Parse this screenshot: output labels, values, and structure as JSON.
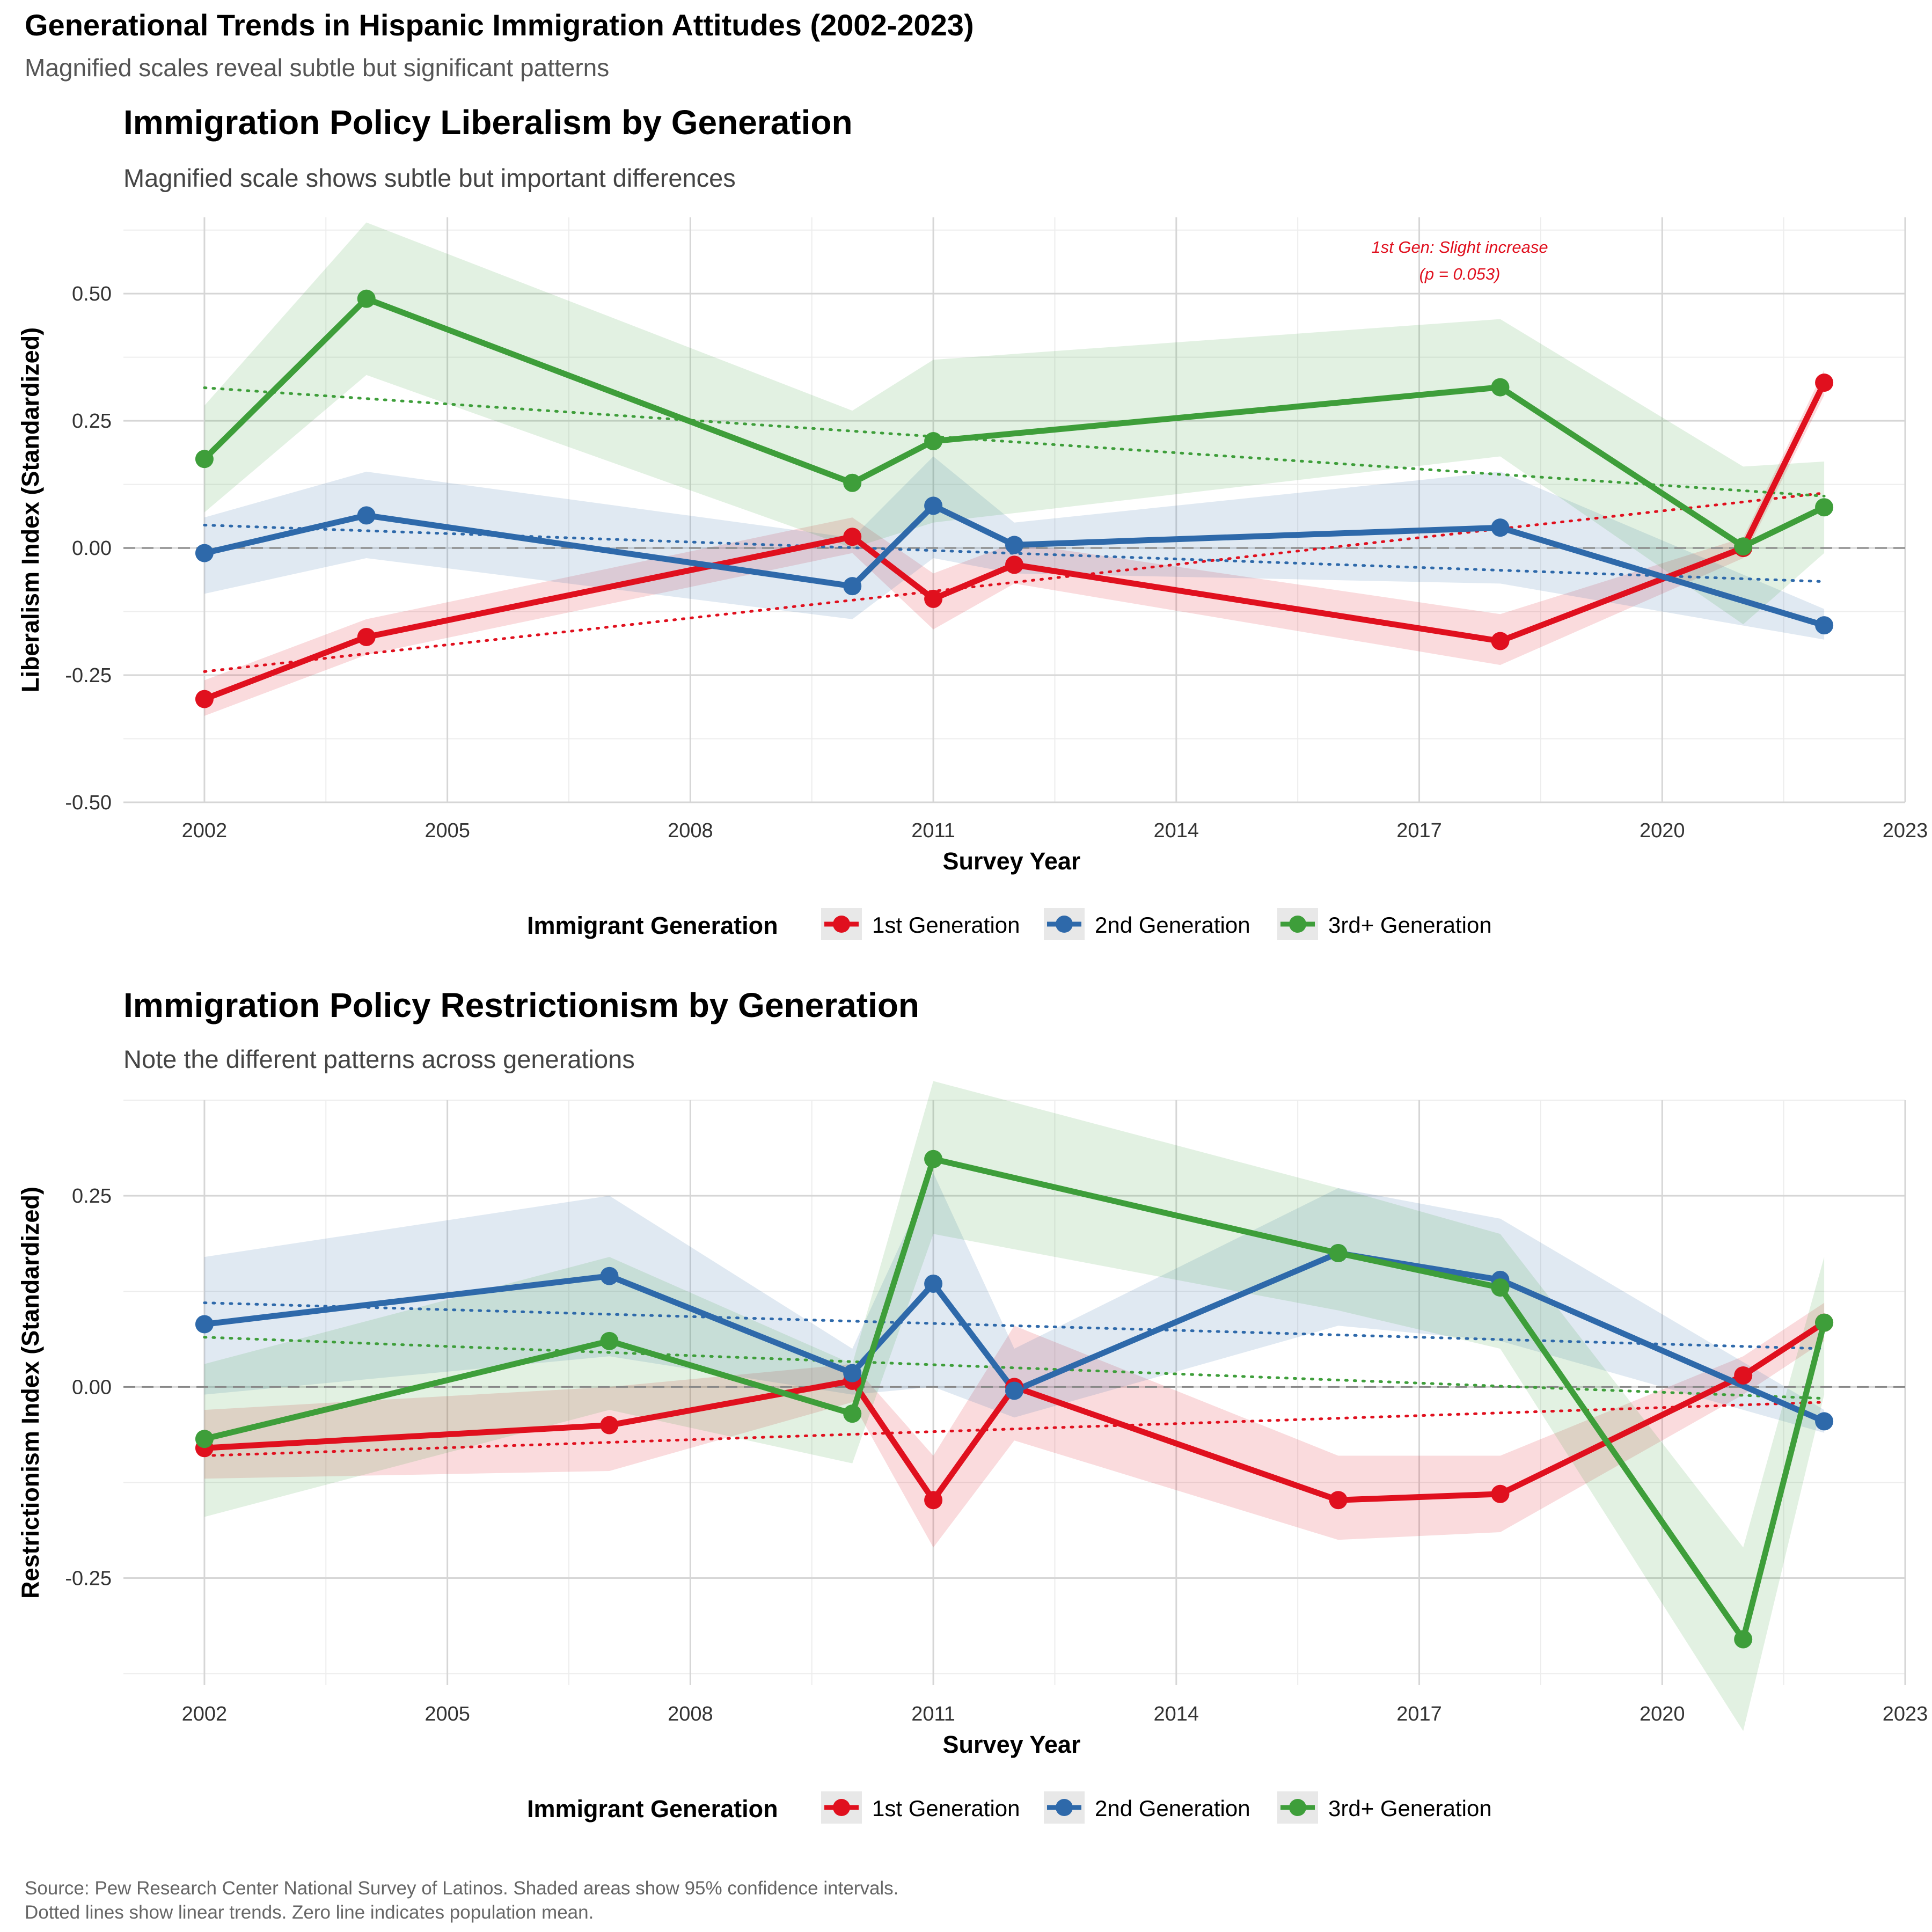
{
  "header": {
    "title": "Generational Trends in Hispanic Immigration Attitudes (2002-2023)",
    "subtitle": "Magnified scales reveal subtle but significant patterns"
  },
  "footer": {
    "caption_line1": "Source: Pew Research Center National Survey of Latinos. Shaded areas show 95% confidence intervals.",
    "caption_line2": "Dotted lines show linear trends. Zero line indicates population mean."
  },
  "colors": {
    "first": "#E0101E",
    "second": "#2E69AA",
    "third": "#3E9E3A"
  },
  "chart_data": [
    {
      "type": "line",
      "title": "Immigration Policy Liberalism by Generation",
      "subtitle": "Magnified scale shows subtle but important differences",
      "xlabel": "Survey Year",
      "ylabel": "Liberalism Index (Standardized)",
      "xlim": [
        2001,
        2023
      ],
      "ylim": [
        -0.5,
        0.65
      ],
      "x_ticks": [
        2002,
        2005,
        2008,
        2011,
        2014,
        2017,
        2020,
        2023
      ],
      "y_ticks": [
        -0.5,
        -0.25,
        0.0,
        0.25,
        0.5
      ],
      "y_tick_labels": [
        "-0.50",
        "-0.25",
        "0.00",
        "0.25",
        "0.50"
      ],
      "grid": true,
      "zero_line": true,
      "legend_title": "Immigrant Generation",
      "legend_position": "bottom",
      "series": [
        {
          "name": "1st Generation",
          "color_key": "first",
          "x": [
            2002,
            2004,
            2010,
            2011,
            2012,
            2018,
            2021,
            2022
          ],
          "y": [
            -0.297,
            -0.175,
            0.022,
            -0.1,
            -0.033,
            -0.183,
            0.0,
            0.325
          ],
          "ci_lower": [
            -0.33,
            -0.21,
            -0.01,
            -0.16,
            -0.07,
            -0.23,
            -0.02,
            0.3
          ],
          "ci_upper": [
            -0.26,
            -0.14,
            0.06,
            -0.05,
            0.01,
            -0.13,
            0.02,
            0.35
          ],
          "trend": [
            -0.243,
            0.108
          ]
        },
        {
          "name": "2nd Generation",
          "color_key": "second",
          "x": [
            2002,
            2004,
            2010,
            2011,
            2012,
            2018,
            2022
          ],
          "y": [
            -0.01,
            0.064,
            -0.075,
            0.083,
            0.006,
            0.04,
            -0.152
          ],
          "ci_lower": [
            -0.09,
            -0.02,
            -0.14,
            -0.02,
            -0.05,
            -0.07,
            -0.18
          ],
          "ci_upper": [
            0.06,
            0.15,
            0.02,
            0.18,
            0.05,
            0.15,
            -0.12
          ],
          "trend": [
            0.045,
            -0.066
          ]
        },
        {
          "name": "3rd+ Generation",
          "color_key": "third",
          "x": [
            2002,
            2004,
            2010,
            2011,
            2018,
            2021,
            2022
          ],
          "y": [
            0.175,
            0.49,
            0.128,
            0.21,
            0.316,
            0.003,
            0.08
          ],
          "ci_lower": [
            0.07,
            0.34,
            0.0,
            0.05,
            0.18,
            -0.15,
            -0.01
          ],
          "ci_upper": [
            0.28,
            0.64,
            0.27,
            0.37,
            0.45,
            0.16,
            0.17
          ],
          "trend": [
            0.315,
            0.102
          ]
        }
      ],
      "annotation": {
        "line1": "1st Gen: Slight increase",
        "line2": "(p = 0.053)",
        "x": 2017.5,
        "y": 0.57
      }
    },
    {
      "type": "line",
      "title": "Immigration Policy Restrictionism by Generation",
      "subtitle": "Note the different patterns across generations",
      "xlabel": "Survey Year",
      "ylabel": "Restrictionism Index (Standardized)",
      "xlim": [
        2001,
        2023
      ],
      "ylim": [
        -0.39,
        0.375
      ],
      "x_ticks": [
        2002,
        2005,
        2008,
        2011,
        2014,
        2017,
        2020,
        2023
      ],
      "y_ticks": [
        -0.25,
        0.0,
        0.25
      ],
      "y_tick_labels": [
        "-0.25",
        "0.00",
        "0.25"
      ],
      "grid": true,
      "zero_line": true,
      "legend_title": "Immigrant Generation",
      "legend_position": "bottom",
      "series": [
        {
          "name": "1st Generation",
          "color_key": "first",
          "x": [
            2002,
            2007,
            2010,
            2011,
            2012,
            2016,
            2018,
            2021,
            2022
          ],
          "y": [
            -0.08,
            -0.05,
            0.008,
            -0.148,
            0.0,
            -0.148,
            -0.14,
            0.015,
            0.084
          ],
          "ci_lower": [
            -0.12,
            -0.11,
            -0.02,
            -0.21,
            -0.07,
            -0.2,
            -0.19,
            -0.01,
            0.06
          ],
          "ci_upper": [
            -0.03,
            0.0,
            0.03,
            -0.09,
            0.08,
            -0.09,
            -0.09,
            0.04,
            0.11
          ],
          "trend": [
            -0.09,
            -0.02
          ]
        },
        {
          "name": "2nd Generation",
          "color_key": "second",
          "x": [
            2002,
            2007,
            2010,
            2011,
            2012,
            2016,
            2018,
            2022
          ],
          "y": [
            0.082,
            0.145,
            0.018,
            0.135,
            -0.005,
            0.175,
            0.14,
            -0.045
          ],
          "ci_lower": [
            -0.01,
            0.04,
            -0.01,
            0.0,
            -0.04,
            0.08,
            0.06,
            -0.06
          ],
          "ci_upper": [
            0.17,
            0.25,
            0.05,
            0.28,
            0.05,
            0.26,
            0.22,
            -0.03
          ],
          "trend": [
            0.11,
            0.05
          ]
        },
        {
          "name": "3rd+ Generation",
          "color_key": "third",
          "x": [
            2002,
            2007,
            2010,
            2011,
            2016,
            2018,
            2021,
            2022
          ],
          "y": [
            -0.068,
            0.06,
            -0.035,
            0.298,
            0.175,
            0.13,
            -0.33,
            0.084
          ],
          "ci_lower": [
            -0.17,
            -0.03,
            -0.1,
            0.2,
            0.1,
            0.05,
            -0.45,
            -0.01
          ],
          "ci_upper": [
            0.03,
            0.17,
            0.03,
            0.4,
            0.26,
            0.2,
            -0.21,
            0.17
          ],
          "trend": [
            0.065,
            -0.015
          ]
        }
      ]
    }
  ]
}
